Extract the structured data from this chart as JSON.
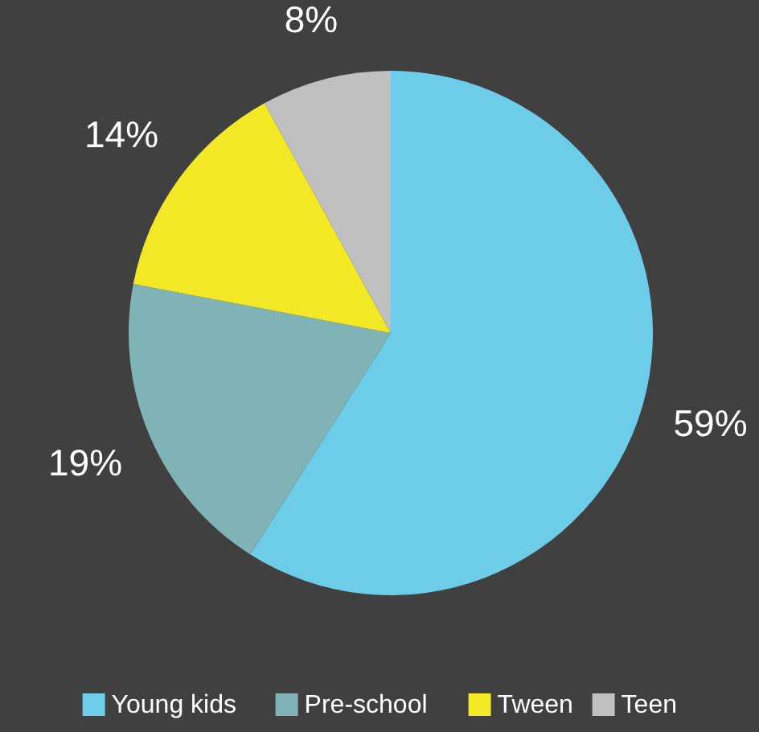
{
  "chart_data": {
    "type": "pie",
    "categories": [
      "Young kids",
      "Pre-school",
      "Tween",
      "Teen"
    ],
    "values": [
      59,
      19,
      14,
      8
    ],
    "colors": [
      "#6dcde8",
      "#7fb3b5",
      "#f2e826",
      "#c0c0c0"
    ],
    "value_labels": [
      "59%",
      "19%",
      "14%",
      "8%"
    ],
    "legend": "bottom"
  }
}
